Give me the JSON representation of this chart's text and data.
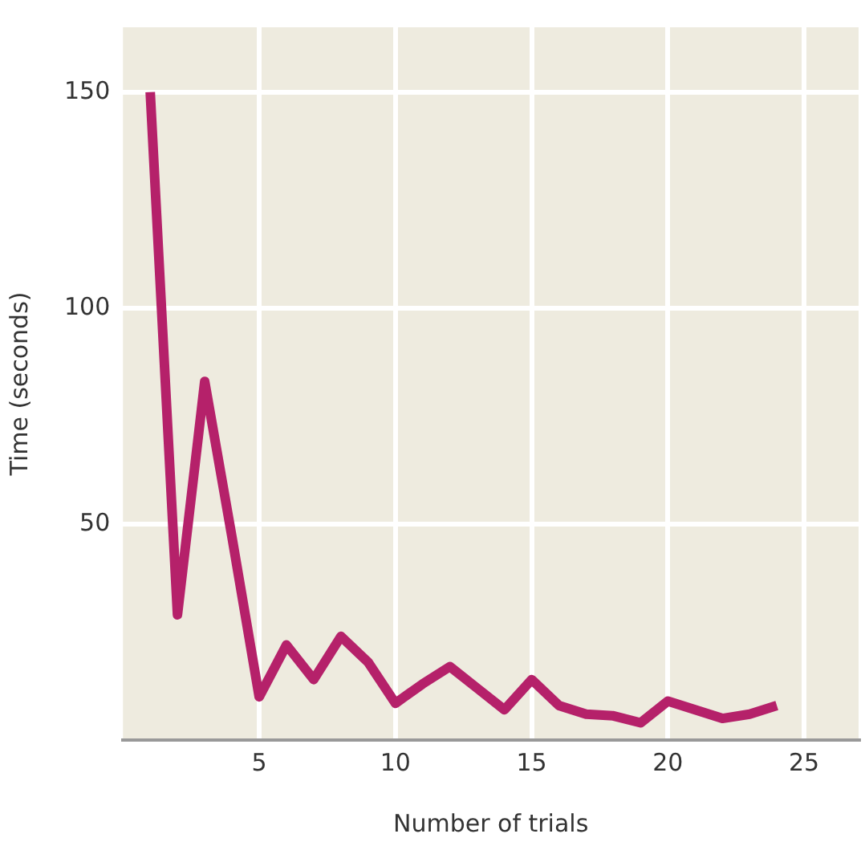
{
  "chart_data": {
    "type": "line",
    "xlabel": "Number of trials",
    "ylabel": "Time (seconds)",
    "x": [
      1,
      2,
      3,
      4,
      5,
      6,
      7,
      8,
      9,
      10,
      11,
      12,
      13,
      14,
      15,
      16,
      17,
      18,
      19,
      20,
      21,
      22,
      23,
      24
    ],
    "series": [
      {
        "color": "#b5216a",
        "values": [
          150,
          29,
          83,
          47,
          10,
          22,
          14,
          24,
          18,
          8.5,
          13,
          17,
          12,
          7,
          14,
          8,
          6,
          5.6,
          4,
          9,
          7,
          5,
          6,
          8
        ]
      }
    ],
    "xlim": [
      0,
      27
    ],
    "xticks": [
      5,
      10,
      15,
      20,
      25
    ],
    "ylim": [
      0,
      165
    ],
    "yticks": [
      50,
      100,
      150
    ],
    "grid": true,
    "legend": false,
    "marker": "none",
    "line_style": "solid"
  }
}
